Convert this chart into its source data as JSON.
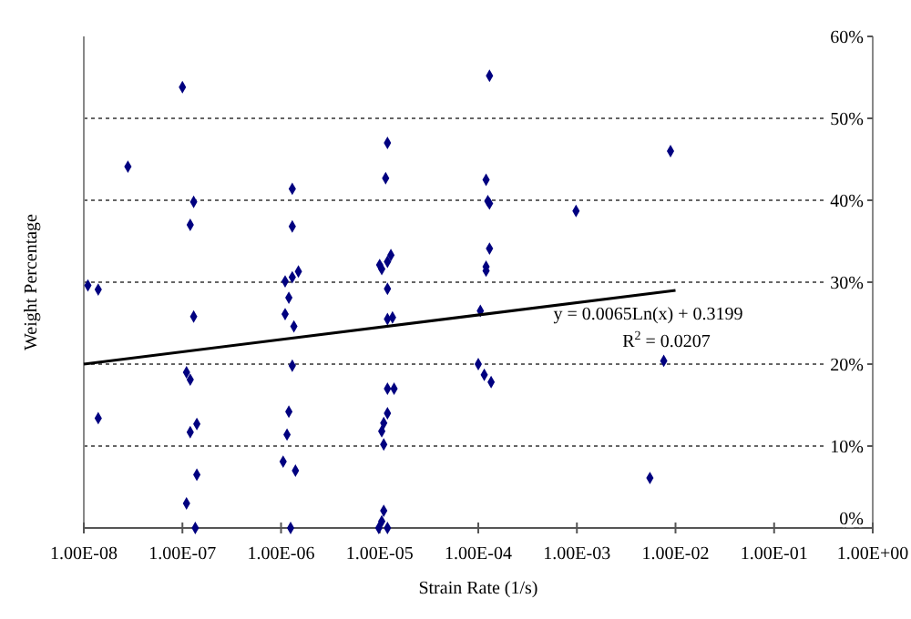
{
  "chart_data": {
    "type": "scatter",
    "xlabel": "Strain Rate (1/s)",
    "ylabel": "Weight Percentage",
    "log": "x",
    "grid": "y",
    "marker": "diamond",
    "xlim": [
      1e-08,
      1
    ],
    "xticks": [
      {
        "value": 1e-08,
        "label": "1.00E-08"
      },
      {
        "value": 1e-07,
        "label": "1.00E-07"
      },
      {
        "value": 1e-06,
        "label": "1.00E-06"
      },
      {
        "value": 1e-05,
        "label": "1.00E-05"
      },
      {
        "value": 0.0001,
        "label": "1.00E-04"
      },
      {
        "value": 0.001,
        "label": "1.00E-03"
      },
      {
        "value": 0.01,
        "label": "1.00E-02"
      },
      {
        "value": 0.1,
        "label": "1.00E-01"
      },
      {
        "value": 1,
        "label": "1.00E+00"
      }
    ],
    "ylim": [
      0,
      60
    ],
    "yticks": [
      {
        "value": 0,
        "label": "0%"
      },
      {
        "value": 10,
        "label": "10%"
      },
      {
        "value": 20,
        "label": "20%"
      },
      {
        "value": 30,
        "label": "30%"
      },
      {
        "value": 40,
        "label": "40%"
      },
      {
        "value": 50,
        "label": "50%"
      },
      {
        "value": 60,
        "label": "60%"
      }
    ],
    "series": [
      {
        "color": "#000080",
        "x": [
          1e-07,
          2.8e-08,
          1.3e-06,
          1.3e-07,
          1.2e-07,
          1.3e-06,
          1.5e-06,
          1.3e-06,
          1.1e-06,
          1.1e-08,
          1.4e-08,
          1.2e-06,
          1.1e-06,
          1.3e-07,
          1.35e-06,
          1.3e-06,
          1.1e-07,
          1.2e-07,
          1.2e-06,
          1.4e-08,
          1.4e-07,
          1.2e-07,
          1.15e-06,
          1.05e-06,
          1.4e-06,
          1.4e-07,
          1.1e-07,
          1.35e-07,
          1.25e-06,
          1.2e-05,
          1.15e-05,
          1.3e-05,
          1.2e-05,
          1e-05,
          1.05e-05,
          1.2e-05,
          1.35e-05,
          1.2e-05,
          1.2e-05,
          1.4e-05,
          1.2e-05,
          1.1e-05,
          1.05e-05,
          1.1e-05,
          1.1e-05,
          1.05e-05,
          9.8e-06,
          1.2e-05,
          0.00013,
          0.00012,
          0.000125,
          0.00013,
          0.00013,
          0.00012,
          0.00012,
          0.000105,
          0.0001,
          0.000115,
          0.000135,
          0.00098,
          0.0089,
          0.0076,
          0.0055
        ],
        "values": [
          53.8,
          44.1,
          41.4,
          39.8,
          37.0,
          36.8,
          31.3,
          30.6,
          30.1,
          29.6,
          29.1,
          28.1,
          26.1,
          25.8,
          24.6,
          19.8,
          19.0,
          18.1,
          14.2,
          13.4,
          12.7,
          11.7,
          11.4,
          8.1,
          7.0,
          6.5,
          3.0,
          0,
          0,
          47.0,
          42.7,
          33.3,
          32.5,
          32.1,
          31.6,
          29.2,
          25.7,
          25.5,
          17.0,
          17.0,
          14.0,
          12.8,
          11.8,
          10.2,
          2.1,
          0.8,
          0,
          0,
          55.2,
          42.5,
          39.9,
          39.6,
          34.1,
          31.9,
          31.4,
          26.5,
          20.0,
          18.7,
          17.8,
          38.7,
          46.0,
          20.4,
          6.1
        ]
      },
      {
        "type": "line",
        "color": "#000000",
        "marker": "none",
        "line_style": "solid",
        "x": [
          1e-08,
          0.01
        ],
        "values": [
          20.0,
          29.0
        ]
      }
    ],
    "annotations": [
      "y = 0.0065Ln(x) + 0.3199",
      "R$^{2}$ = 0.0207"
    ]
  }
}
